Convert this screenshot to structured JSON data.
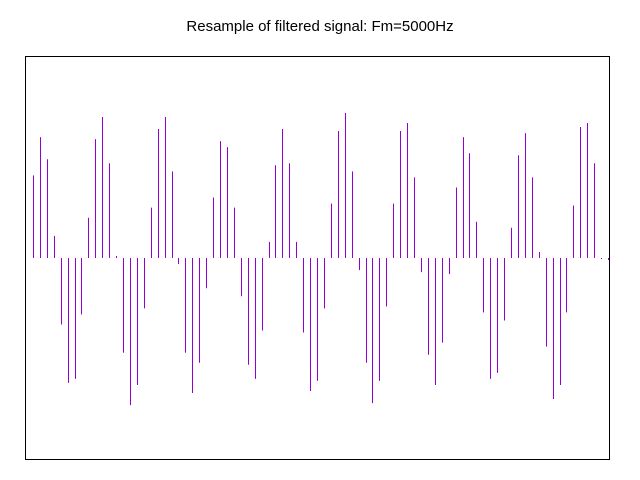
{
  "chart_data": {
    "type": "bar",
    "title": "Resample of filtered signal: Fm=5000Hz",
    "xlabel": "",
    "ylabel": "",
    "grid": false,
    "legend": "none",
    "ylim": [
      -1.0,
      1.0
    ],
    "xlim": [
      0,
      84
    ],
    "bar_color": "#9400d3",
    "x": [
      0,
      1,
      2,
      3,
      4,
      5,
      6,
      7,
      8,
      9,
      10,
      11,
      12,
      13,
      14,
      15,
      16,
      17,
      18,
      19,
      20,
      21,
      22,
      23,
      24,
      25,
      26,
      27,
      28,
      29,
      30,
      31,
      32,
      33,
      34,
      35,
      36,
      37,
      38,
      39,
      40,
      41,
      42,
      43,
      44,
      45,
      46,
      47,
      48,
      49,
      50,
      51,
      52,
      53,
      54,
      55,
      56,
      57,
      58,
      59,
      60,
      61,
      62,
      63,
      64,
      65,
      66,
      67,
      68,
      69,
      70,
      71,
      72,
      73,
      74,
      75,
      76,
      77,
      78,
      79,
      80,
      81,
      82,
      83
    ],
    "values": [
      0.41,
      0.6,
      0.49,
      0.11,
      -0.33,
      -0.62,
      -0.6,
      -0.28,
      0.2,
      0.59,
      0.7,
      0.47,
      0.01,
      -0.47,
      -0.73,
      -0.63,
      -0.25,
      0.25,
      0.64,
      0.7,
      0.43,
      -0.03,
      -0.47,
      -0.67,
      -0.52,
      -0.15,
      0.3,
      0.58,
      0.55,
      0.25,
      -0.19,
      -0.53,
      -0.6,
      -0.36,
      0.08,
      0.46,
      0.64,
      0.47,
      0.08,
      -0.37,
      -0.66,
      -0.61,
      -0.25,
      0.27,
      0.63,
      0.72,
      0.43,
      -0.06,
      -0.52,
      -0.72,
      -0.61,
      -0.24,
      0.27,
      0.63,
      0.67,
      0.4,
      -0.07,
      -0.48,
      -0.63,
      -0.42,
      -0.08,
      0.35,
      0.6,
      0.52,
      0.18,
      -0.27,
      -0.6,
      -0.57,
      -0.31,
      0.15,
      0.51,
      0.62,
      0.4,
      0.03,
      -0.44,
      -0.7,
      -0.63,
      -0.27,
      0.26,
      0.65,
      0.67,
      0.47,
      0.0,
      -0.01
    ]
  }
}
